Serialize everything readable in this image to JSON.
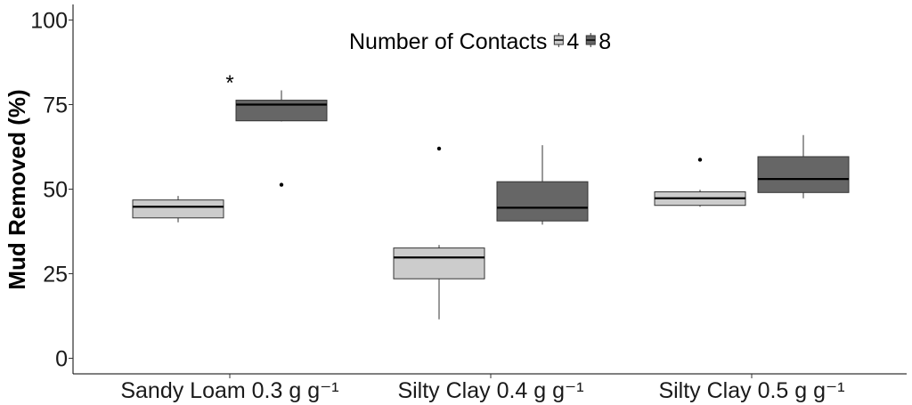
{
  "chart_data": {
    "type": "box",
    "ylabel": "Mud Removed (%)",
    "ylim": [
      0,
      100
    ],
    "yticks": [
      0,
      25,
      50,
      75,
      100
    ],
    "categories": [
      "Sandy Loam 0.3 g g⁻¹",
      "Silty Clay 0.4 g g⁻¹",
      "Silty Clay 0.5 g g⁻¹"
    ],
    "legend": {
      "title": "Number of Contacts",
      "position": "top-center"
    },
    "series": [
      {
        "name": "4",
        "color": "#cccccc",
        "boxes": [
          {
            "category": 0,
            "min": 40.2,
            "q1": 41.5,
            "median": 44.8,
            "q3": 46.8,
            "max": 48.0,
            "outliers": []
          },
          {
            "category": 1,
            "min": 11.5,
            "q1": 23.5,
            "median": 29.8,
            "q3": 32.6,
            "max": 33.5,
            "outliers": [
              62.0
            ]
          },
          {
            "category": 2,
            "min": 44.8,
            "q1": 45.2,
            "median": 47.3,
            "q3": 49.2,
            "max": 49.8,
            "outliers": [
              58.7
            ]
          }
        ]
      },
      {
        "name": "8",
        "color": "#666666",
        "boxes": [
          {
            "category": 0,
            "min": 70.0,
            "q1": 70.2,
            "median": 75.0,
            "q3": 76.3,
            "max": 79.2,
            "outliers": [
              51.3
            ]
          },
          {
            "category": 1,
            "min": 39.5,
            "q1": 40.6,
            "median": 44.5,
            "q3": 52.2,
            "max": 63.0,
            "outliers": []
          },
          {
            "category": 2,
            "min": 47.3,
            "q1": 49.0,
            "median": 53.0,
            "q3": 59.6,
            "max": 66.0,
            "outliers": []
          }
        ]
      }
    ],
    "annotations": [
      {
        "text": "*",
        "category": 0
      }
    ],
    "grid": false
  }
}
